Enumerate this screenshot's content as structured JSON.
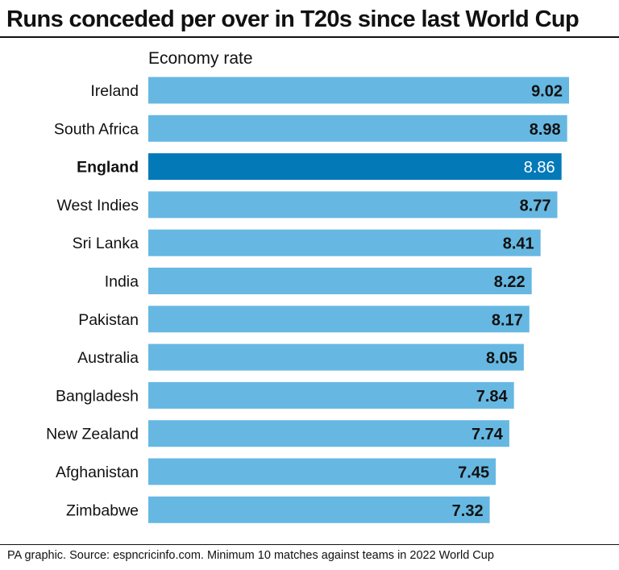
{
  "title": "Runs conceded per over in T20s since last World Cup",
  "source": "PA graphic. Source: espncricinfo.com. Minimum 10 matches against teams in 2022 World Cup",
  "colors": {
    "bar": "#66b8e2",
    "highlight_bar": "#0479b8",
    "value_text": "#111111",
    "highlight_value_text": "#ffffff"
  },
  "chart_data": {
    "type": "bar",
    "orientation": "horizontal",
    "title": "Runs conceded per over in T20s since last World Cup",
    "xlabel": "Economy rate",
    "ylabel": "",
    "highlight": "England",
    "categories": [
      "Ireland",
      "South Africa",
      "England",
      "West Indies",
      "Sri Lanka",
      "India",
      "Pakistan",
      "Australia",
      "Bangladesh",
      "New Zealand",
      "Afghanistan",
      "Zimbabwe"
    ],
    "values": [
      9.02,
      8.98,
      8.86,
      8.77,
      8.41,
      8.22,
      8.17,
      8.05,
      7.84,
      7.74,
      7.45,
      7.32
    ],
    "value_labels": [
      "9.02",
      "8.98",
      "8.86",
      "8.77",
      "8.41",
      "8.22",
      "8.17",
      "8.05",
      "7.84",
      "7.74",
      "7.45",
      "7.32"
    ],
    "xlim": [
      0,
      9.02
    ]
  }
}
